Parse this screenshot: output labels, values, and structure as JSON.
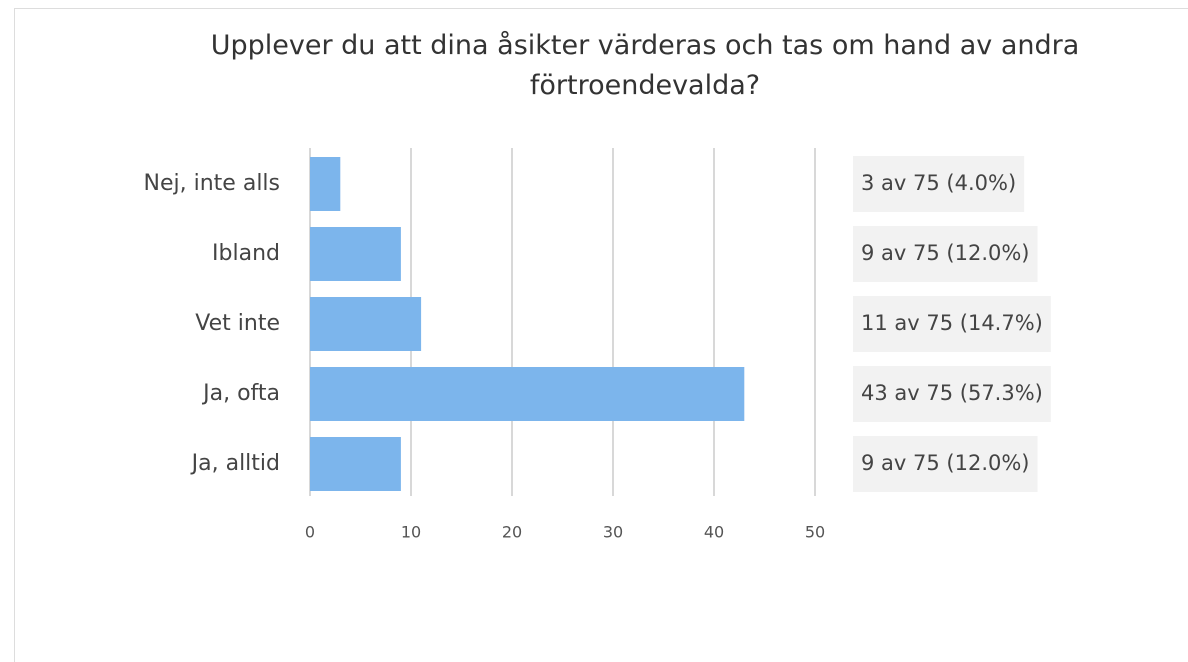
{
  "chart_data": {
    "type": "bar",
    "orientation": "horizontal",
    "title": "Upplever du att dina åsikter värderas och tas om hand av andra förtroendevalda?",
    "categories": [
      "Nej, inte alls",
      "Ibland",
      "Vet inte",
      "Ja, ofta",
      "Ja, alltid"
    ],
    "values": [
      3,
      9,
      11,
      43,
      9
    ],
    "value_labels": [
      "3 av 75 (4.0%)",
      "9 av 75 (12.0%)",
      "11 av 75 (14.7%)",
      "43 av 75 (57.3%)",
      "9 av 75 (12.0%)"
    ],
    "color": "#7cb5ec",
    "xlim": [
      0,
      50
    ],
    "xticks": [
      0,
      10,
      20,
      30,
      40,
      50
    ],
    "grid": true
  }
}
